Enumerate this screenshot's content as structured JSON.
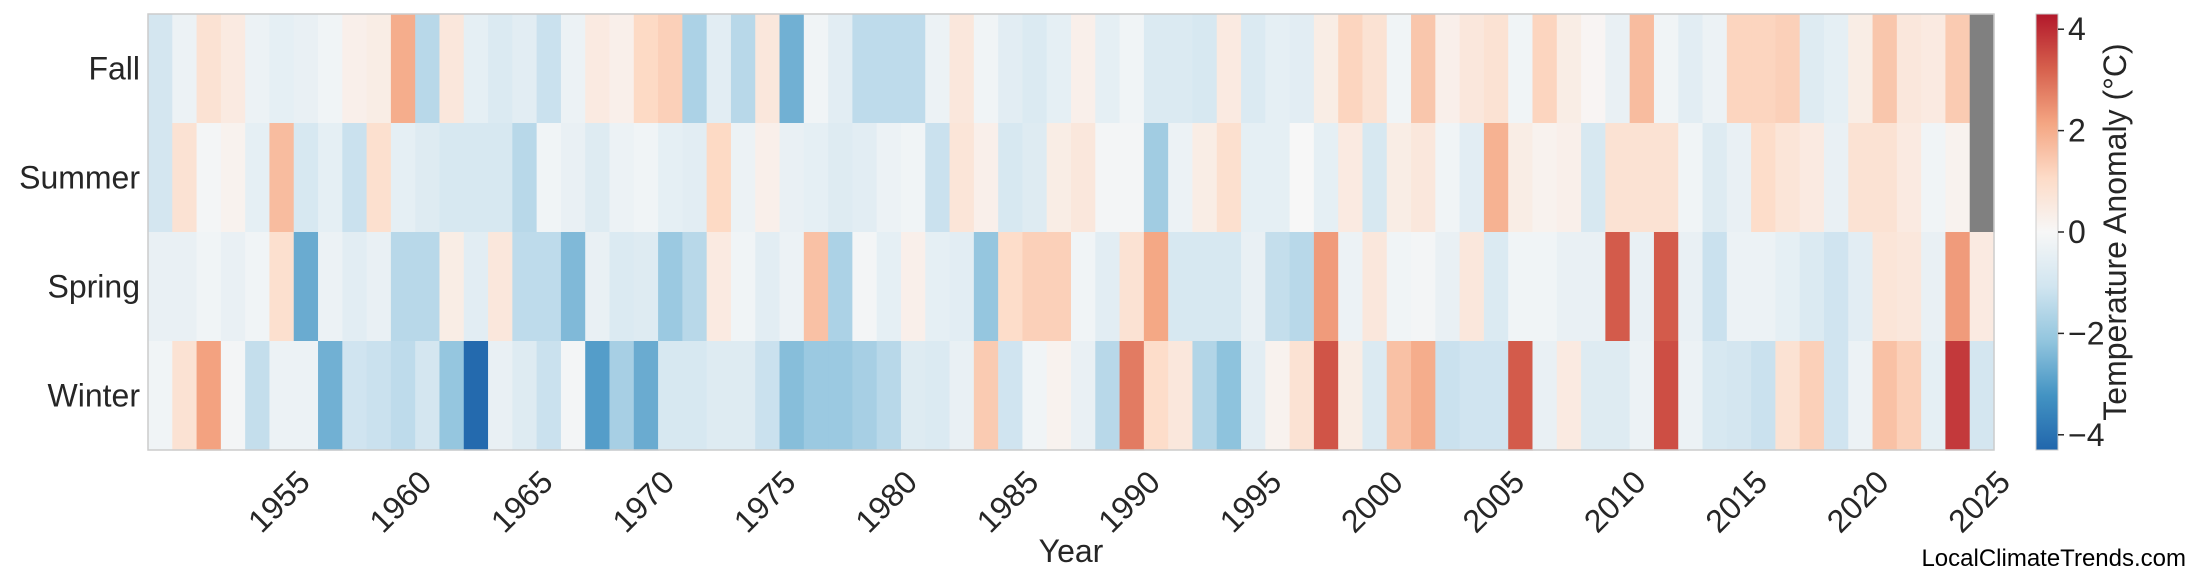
{
  "chart_data": {
    "type": "heatmap",
    "xlabel": "Year",
    "colorbar_label": "Temperature Anomaly (°C)",
    "rows": [
      "Fall",
      "Summer",
      "Spring",
      "Winter"
    ],
    "years": [
      1950,
      1951,
      1952,
      1953,
      1954,
      1955,
      1956,
      1957,
      1958,
      1959,
      1960,
      1961,
      1962,
      1963,
      1964,
      1965,
      1966,
      1967,
      1968,
      1969,
      1970,
      1971,
      1972,
      1973,
      1974,
      1975,
      1976,
      1977,
      1978,
      1979,
      1980,
      1981,
      1982,
      1983,
      1984,
      1985,
      1986,
      1987,
      1988,
      1989,
      1990,
      1991,
      1992,
      1993,
      1994,
      1995,
      1996,
      1997,
      1998,
      1999,
      2000,
      2001,
      2002,
      2003,
      2004,
      2005,
      2006,
      2007,
      2008,
      2009,
      2010,
      2011,
      2012,
      2013,
      2014,
      2015,
      2016,
      2017,
      2018,
      2019,
      2020,
      2021,
      2022,
      2023,
      2024,
      2025
    ],
    "x_ticks": [
      1955,
      1960,
      1965,
      1970,
      1975,
      1980,
      1985,
      1990,
      1995,
      2000,
      2005,
      2010,
      2015,
      2020,
      2025
    ],
    "colorbar_ticks": [
      -4,
      -2,
      0,
      2,
      4
    ],
    "vmin": -4.3,
    "vmax": 4.3,
    "cmap": [
      "#2166ac",
      "#4393c3",
      "#92c5de",
      "#d1e5f0",
      "#f7f7f7",
      "#fddbc7",
      "#f4a582",
      "#d6604d",
      "#b2182b"
    ],
    "missing_color": "#808080",
    "values": {
      "Fall": [
        -1.0,
        -0.3,
        0.8,
        0.5,
        -0.3,
        -0.5,
        -0.4,
        -0.2,
        0.3,
        0.4,
        2.0,
        -1.5,
        0.6,
        -0.5,
        -0.8,
        -0.6,
        -1.2,
        -0.3,
        0.5,
        0.3,
        1.1,
        1.3,
        -1.7,
        -0.6,
        -1.5,
        0.6,
        -2.6,
        -0.2,
        -0.6,
        -1.4,
        -1.4,
        -1.4,
        -0.3,
        0.6,
        -0.2,
        -0.6,
        -0.8,
        -0.5,
        0.3,
        -0.5,
        -0.2,
        -0.8,
        -0.8,
        -0.9,
        0.5,
        -0.8,
        -0.5,
        -0.6,
        0.4,
        1.2,
        0.8,
        -0.2,
        1.5,
        0.3,
        0.6,
        0.8,
        -0.2,
        1.2,
        0.4,
        0.1,
        -0.4,
        1.7,
        -0.2,
        -0.6,
        -0.3,
        1.2,
        1.2,
        1.3,
        -0.7,
        -0.5,
        0.4,
        1.5,
        0.6,
        0.5,
        1.4,
        null
      ],
      "Summer": [
        -1.0,
        0.8,
        -0.1,
        0.2,
        -0.5,
        1.7,
        -0.9,
        -0.5,
        -1.2,
        0.9,
        -0.5,
        -0.7,
        -0.9,
        -0.9,
        -0.9,
        -1.5,
        -0.2,
        -0.4,
        -0.7,
        -0.3,
        -0.2,
        -0.5,
        -0.6,
        1.1,
        -0.3,
        0.3,
        -0.4,
        -0.5,
        -0.7,
        -0.6,
        -0.3,
        -0.2,
        -1.2,
        0.7,
        0.3,
        -0.9,
        -0.7,
        0.4,
        0.6,
        -0.1,
        -0.1,
        -1.9,
        -0.3,
        0.4,
        0.9,
        -0.5,
        -0.5,
        0.0,
        -0.5,
        0.5,
        -0.9,
        0.4,
        0.6,
        -0.2,
        -0.6,
        1.9,
        0.4,
        0.2,
        0.3,
        -0.9,
        0.8,
        0.8,
        0.8,
        -0.2,
        -0.7,
        -0.4,
        1.0,
        0.7,
        0.5,
        -0.4,
        0.8,
        0.8,
        0.5,
        -0.2,
        0.2,
        null
      ],
      "Spring": [
        -0.4,
        -0.4,
        -0.2,
        -0.4,
        -0.2,
        0.9,
        -2.7,
        -0.3,
        -0.6,
        -0.4,
        -1.5,
        -1.5,
        0.4,
        -0.6,
        0.6,
        -1.4,
        -1.4,
        -2.4,
        -0.4,
        -0.8,
        -0.7,
        -2.0,
        -1.5,
        0.5,
        -0.2,
        -0.6,
        -0.3,
        1.6,
        -1.7,
        -0.1,
        -0.5,
        0.3,
        -0.5,
        -0.6,
        -2.1,
        1.0,
        1.3,
        1.3,
        -0.2,
        -0.6,
        0.8,
        2.1,
        -0.9,
        -0.9,
        -0.9,
        -0.4,
        -1.3,
        -1.5,
        2.3,
        -0.3,
        0.6,
        -0.2,
        -0.1,
        -0.4,
        0.6,
        -0.8,
        -0.2,
        -0.2,
        -0.4,
        -0.4,
        3.3,
        -0.4,
        3.3,
        -0.4,
        -1.2,
        -0.3,
        -0.3,
        -0.5,
        -0.8,
        -1.1,
        -0.6,
        0.7,
        0.6,
        -0.4,
        2.3,
        0.5
      ],
      "Winter": [
        -0.2,
        0.8,
        2.2,
        -0.1,
        -1.3,
        -0.3,
        -0.3,
        -2.6,
        -1.1,
        -1.2,
        -1.4,
        -1.0,
        -2.1,
        -4.2,
        -0.4,
        -0.7,
        -1.2,
        -0.1,
        -3.0,
        -1.8,
        -2.7,
        -0.9,
        -0.9,
        -0.7,
        -0.7,
        -1.2,
        -2.3,
        -2.0,
        -2.0,
        -1.8,
        -1.5,
        -0.7,
        -0.8,
        -0.4,
        1.4,
        -1.1,
        -0.2,
        0.2,
        -0.4,
        -1.5,
        2.8,
        1.0,
        0.6,
        -1.6,
        -2.2,
        -0.6,
        0.2,
        0.8,
        3.4,
        0.4,
        -0.8,
        1.6,
        2.0,
        -1.2,
        -1.1,
        -1.1,
        3.3,
        -0.4,
        0.5,
        -0.7,
        -0.7,
        -0.3,
        3.5,
        -0.3,
        -0.9,
        -1.0,
        -1.2,
        0.8,
        1.3,
        -1.1,
        -0.3,
        1.6,
        1.3,
        -0.5,
        3.8,
        -1.0
      ]
    }
  },
  "credit": "LocalClimateTrends.com"
}
